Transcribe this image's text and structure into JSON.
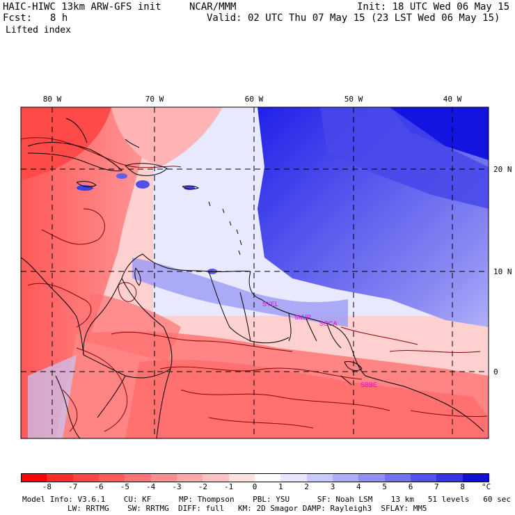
{
  "header": {
    "model": "HAIC-HIWC 13km ARW-GFS init",
    "org": "NCAR/MMM",
    "init": "Init: 18 UTC Wed 06 May 15",
    "fcst_label": "Fcst:",
    "fcst_value": "8 h",
    "valid": "Valid: 02 UTC Thu 07 May 15 (23 LST Wed 06 May 15)",
    "field": "Lifted index"
  },
  "map": {
    "lon_labels": [
      "80 W",
      "70 W",
      "60 W",
      "50 W",
      "40 W"
    ],
    "lat_labels": [
      "20 N",
      "10 N",
      "0"
    ],
    "stations": [
      "SYEL",
      "SMJP",
      "SOCA",
      "SBBE"
    ],
    "colors": {
      "negative": "#ff3030",
      "positive": "#2020e8",
      "neutral": "#ffffff",
      "coast": "#000000",
      "contour": "#8b0000",
      "station": "#e000e0"
    }
  },
  "colorbar": {
    "labels": [
      "-8",
      "-7",
      "-6",
      "-5",
      "-4",
      "-3",
      "-2",
      "-1",
      "0",
      "1",
      "2",
      "3",
      "4",
      "5",
      "6",
      "7",
      "8"
    ],
    "unit": "°C",
    "colors": [
      "#ff0000",
      "#ff2a2a",
      "#ff4545",
      "#ff5c5c",
      "#ff7575",
      "#ff8f8f",
      "#ffa8a8",
      "#ffc2c2",
      "#ffe0e0",
      "#ffffff",
      "#e6e6ff",
      "#c9c9ff",
      "#adadfa",
      "#8f8ff5",
      "#7272ef",
      "#5252e8",
      "#3434e0",
      "#1010d8"
    ]
  },
  "footer": {
    "line1": "Model Info: V3.6.1    CU: KF      MP: Thompson    PBL: YSU      SF: Noah LSM    13 km   51 levels   60 sec",
    "line2": "LW: RRTMG    SW: RRTMG  DIFF: full   KM: 2D Smagor DAMP: Rayleigh3  SFLAY: MM5"
  }
}
